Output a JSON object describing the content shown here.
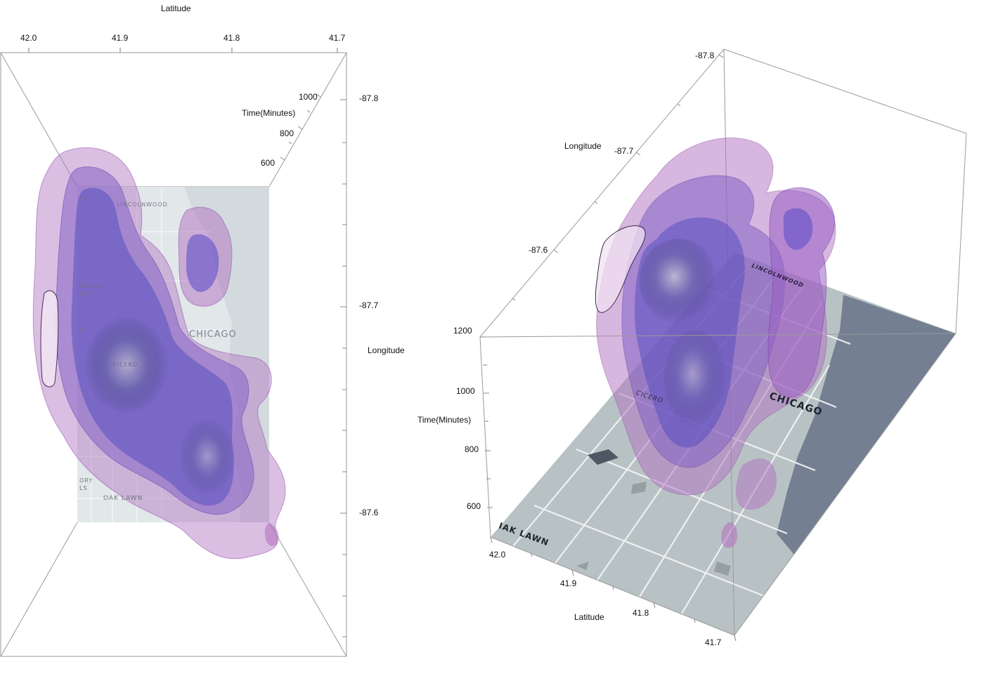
{
  "chart_data": [
    {
      "type": "3d-density-isosurface",
      "view": "top-down",
      "axes": {
        "x": {
          "label": "Latitude",
          "ticks": [
            "42.0",
            "41.9",
            "41.8",
            "41.7"
          ],
          "range": [
            42.0,
            41.7
          ]
        },
        "y": {
          "label": "Longitude",
          "ticks": [
            "-87.8",
            "-87.7",
            "-87.6"
          ],
          "range": [
            -87.8,
            -87.6
          ]
        },
        "z": {
          "label": "Time(Minutes)",
          "ticks": [
            "600",
            "800",
            "1000"
          ]
        }
      },
      "map_labels": [
        "CHICAGO",
        "OAK LAWN",
        "LINCOLNWOOD",
        "ORY",
        "LS",
        "NWOOD",
        "ARK",
        "CICERO",
        "GE",
        "O"
      ],
      "colors": {
        "outer": "#b070c0",
        "mid": "#8060c8",
        "inner": "#5a50b8",
        "core": "#4a4a70",
        "map": "#dde3e8",
        "water": "#cdd5db"
      }
    },
    {
      "type": "3d-density-isosurface",
      "view": "perspective",
      "axes": {
        "x": {
          "label": "Latitude",
          "ticks": [
            "42.0",
            "41.9",
            "41.8",
            "41.7"
          ],
          "range": [
            42.0,
            41.7
          ]
        },
        "y": {
          "label": "Longitude",
          "ticks": [
            "-87.8",
            "-87.7",
            "-87.6"
          ],
          "range": [
            -87.8,
            -87.6
          ]
        },
        "z": {
          "label": "Time(Minutes)",
          "ticks": [
            "1200",
            "1000",
            "800",
            "600"
          ],
          "range": [
            500,
            1200
          ]
        }
      },
      "map_labels": [
        "CHICAGO",
        "IAK LAWN",
        "CICERO",
        "LINCOLNWOOD"
      ],
      "colors": {
        "outer": "#b070c0",
        "mid": "#8060c8",
        "inner": "#5a50b8",
        "land": "#b8c2c4",
        "water": "#747f92",
        "roads": "#ffffff"
      }
    }
  ]
}
